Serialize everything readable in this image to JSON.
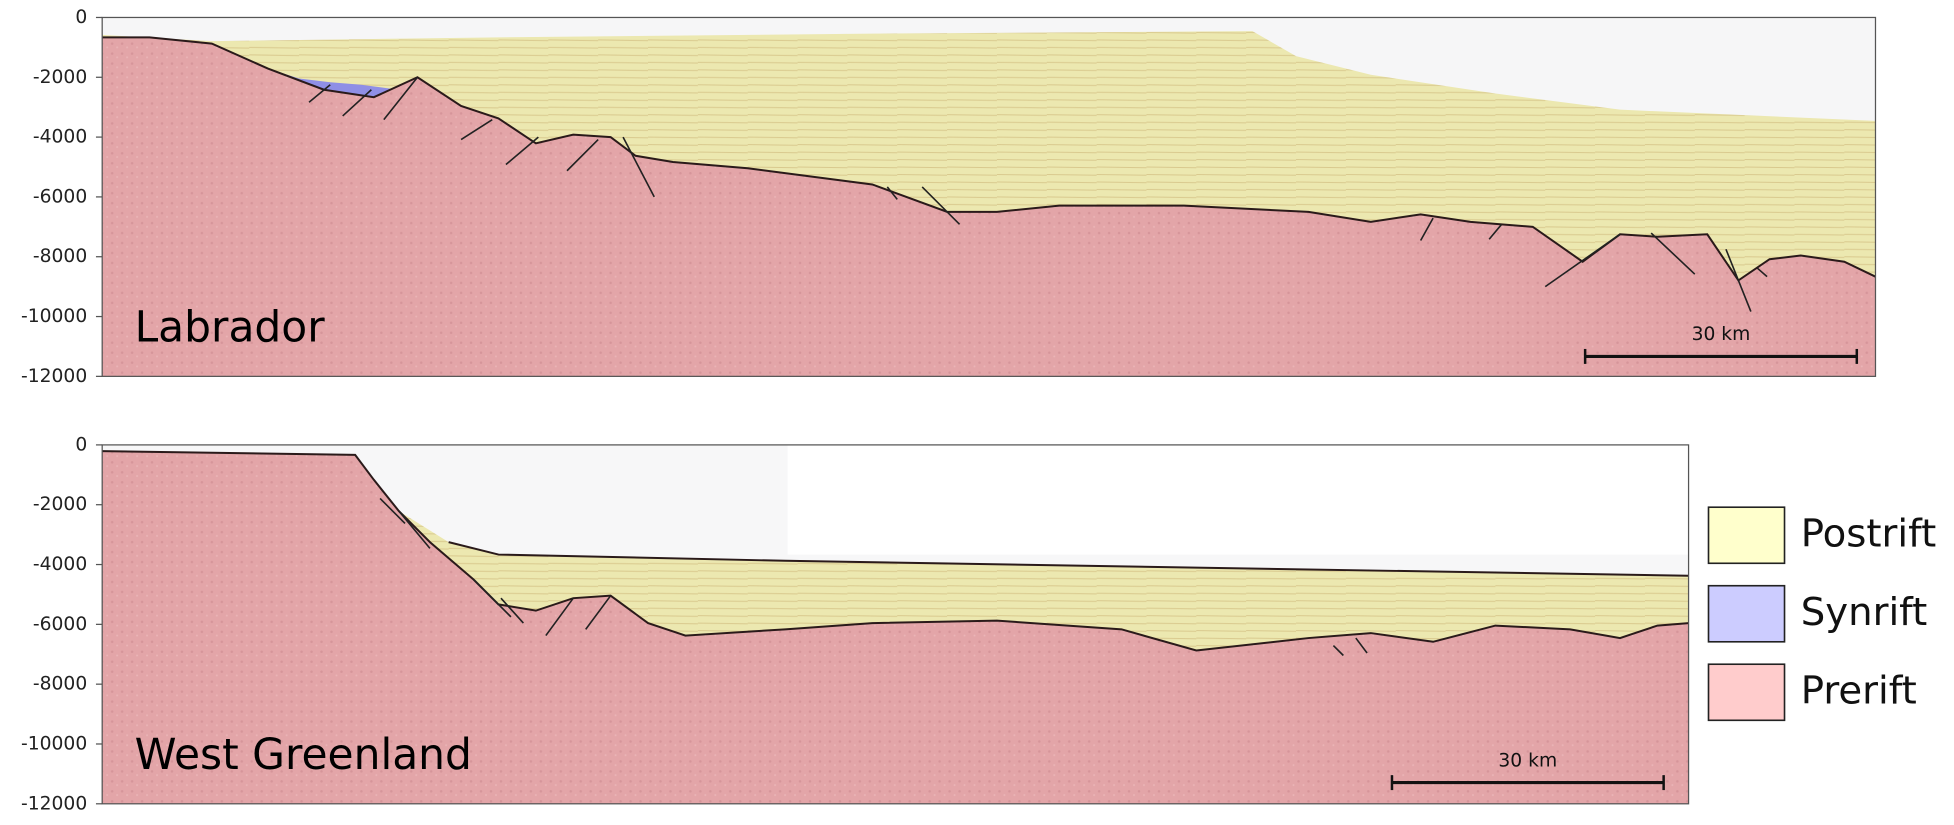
{
  "chart_data": [
    {
      "type": "section",
      "label": "Labrador",
      "ylim": [
        0,
        -12000
      ],
      "yticks": [
        0,
        -2000,
        -4000,
        -6000,
        -8000,
        -10000,
        -12000
      ],
      "scale_bar": "30 km"
    },
    {
      "type": "section",
      "label": "West Greenland",
      "ylim": [
        0,
        -12000
      ],
      "yticks": [
        0,
        -2000,
        -4000,
        -6000,
        -8000,
        -10000,
        -12000
      ],
      "scale_bar": "30 km"
    }
  ],
  "legend": {
    "items": [
      {
        "name": "Postrift",
        "color": "#ffffcc"
      },
      {
        "name": "Synrift",
        "color": "#ccccff"
      },
      {
        "name": "Prerift",
        "color": "#ffcccc"
      }
    ]
  }
}
